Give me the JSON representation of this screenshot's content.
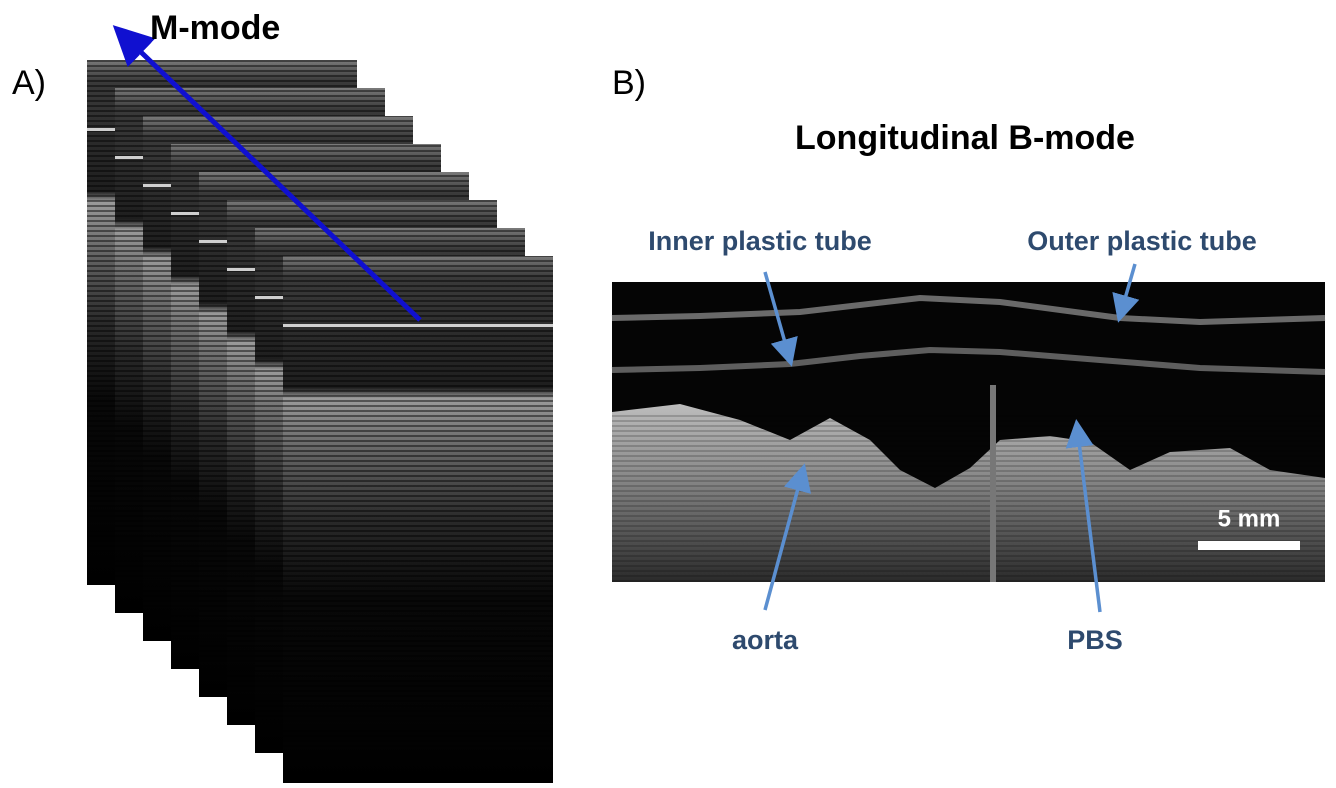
{
  "panel_a": {
    "label": "A)",
    "title": "M-mode"
  },
  "panel_b": {
    "label": "B)",
    "title": "Longitudinal B-mode",
    "annotations": [
      "Inner plastic tube",
      "Outer plastic tube",
      "aorta",
      "PBS"
    ],
    "scale_bar": "5 mm"
  }
}
